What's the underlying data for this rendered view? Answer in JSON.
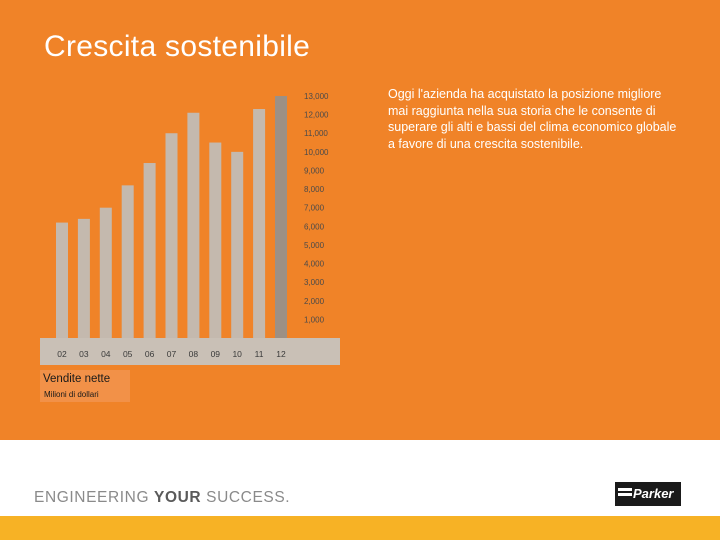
{
  "title": "Crescita sostenibile",
  "body_text": "Oggi l'azienda ha acquistato la posizione migliore mai raggiunta nella sua storia che le consente di superare gli alti e bassi del clima economico globale a favore di una crescita sostenibile.",
  "legend": {
    "title": "Vendite nette",
    "subtitle": "Milioni di dollari"
  },
  "footer": {
    "tagline_part1": "ENGINEERING ",
    "tagline_part2": "YOUR",
    "tagline_part3": " SUCCESS.",
    "logo_text": "Parker"
  },
  "colors": {
    "background": "#f08328",
    "bar": "#c4b9ae",
    "bar_highlight": "#9c9085",
    "plinth": "#c9c0b6",
    "footer_bar": "#f7b225"
  },
  "chart_data": {
    "type": "bar",
    "categories": [
      "02",
      "03",
      "04",
      "05",
      "06",
      "07",
      "08",
      "09",
      "10",
      "11",
      "12"
    ],
    "values": [
      6200,
      6400,
      7000,
      8200,
      9400,
      11000,
      12100,
      10500,
      10000,
      12300,
      13000
    ],
    "y_ticks": [
      "1,000",
      "2,000",
      "3,000",
      "4,000",
      "5,000",
      "6,000",
      "7,000",
      "8,000",
      "9,000",
      "10,000",
      "11,000",
      "12,000",
      "13,000"
    ],
    "ylim": [
      0,
      13000
    ],
    "grid": false,
    "axis_position": "right"
  }
}
